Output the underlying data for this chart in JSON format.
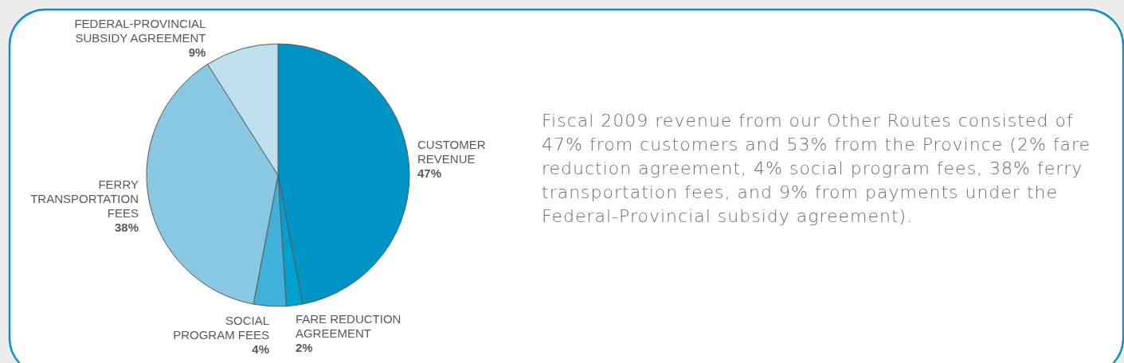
{
  "chart_data": {
    "type": "pie",
    "categories": [
      "CUSTOMER\nREVENUE",
      "FARE REDUCTION\nAGREEMENT",
      "SOCIAL\nPROGRAM FEES",
      "FERRY\nTRANSPORTATION\nFEES",
      "FEDERAL-PROVINCIAL\nSUBSIDY AGREEMENT"
    ],
    "values": [
      47,
      2,
      4,
      38,
      9
    ],
    "value_labels": [
      "47%",
      "2%",
      "4%",
      "38%",
      "9%"
    ],
    "colors": [
      "#0094c5",
      "#00a1cf",
      "#40b2d9",
      "#88c8e2",
      "#bde0ec"
    ],
    "annotations": [
      "Fiscal 2009 revenue from our Other Routes consisted of 47% from customers and 53% from the Province (2% fare reduction agreement, 4% social program fees, 38% ferry transportation fees, and 9% from payments under the Federal-Provincial subsidy agreement)."
    ]
  }
}
